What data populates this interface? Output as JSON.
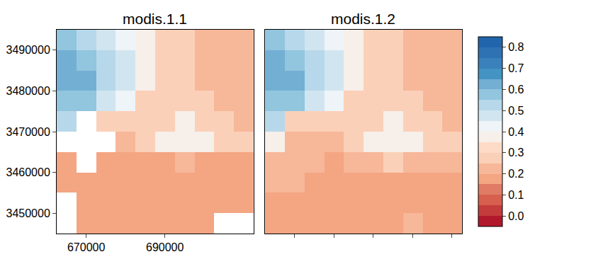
{
  "chart_data": [
    {
      "type": "heatmap",
      "title": "modis.1.1",
      "x": [
        665000,
        670000,
        675000,
        680000,
        685000,
        690000,
        695000,
        700000,
        705000,
        710000
      ],
      "y": [
        3492500,
        3487500,
        3482500,
        3477500,
        3472500,
        3467500,
        3462500,
        3457500,
        3452500,
        3447500
      ],
      "z": [
        [
          0.55,
          0.5,
          0.45,
          0.42,
          0.35,
          0.3,
          0.25,
          0.22,
          0.2,
          0.2
        ],
        [
          0.6,
          0.55,
          0.5,
          0.45,
          0.35,
          0.28,
          0.25,
          0.22,
          0.2,
          0.2
        ],
        [
          0.6,
          0.6,
          0.5,
          0.45,
          0.35,
          0.28,
          0.25,
          0.22,
          0.2,
          0.2
        ],
        [
          0.55,
          0.55,
          0.45,
          0.4,
          0.3,
          0.25,
          0.25,
          0.25,
          0.22,
          0.2
        ],
        [
          0.5,
          null,
          0.25,
          0.25,
          0.25,
          0.3,
          0.35,
          0.3,
          0.25,
          0.22
        ],
        [
          null,
          null,
          null,
          0.2,
          0.25,
          0.35,
          0.38,
          0.35,
          0.3,
          0.25
        ],
        [
          0.15,
          null,
          0.15,
          0.15,
          0.15,
          0.15,
          0.2,
          0.15,
          0.15,
          0.15
        ],
        [
          0.15,
          0.15,
          0.15,
          0.15,
          0.15,
          0.15,
          0.15,
          0.15,
          0.15,
          0.15
        ],
        [
          null,
          0.15,
          0.15,
          0.15,
          0.15,
          0.15,
          0.15,
          0.15,
          0.15,
          0.15
        ],
        [
          null,
          0.15,
          0.15,
          0.15,
          0.15,
          0.15,
          0.15,
          0.15,
          null,
          null
        ]
      ],
      "xlim": [
        662500,
        712500
      ],
      "ylim": [
        3445000,
        3495000
      ],
      "xticks": [
        670000,
        690000
      ],
      "yticks": [
        3450000,
        3460000,
        3470000,
        3480000,
        3490000
      ],
      "color_range": [
        -0.05,
        0.85
      ],
      "color_ticks": [
        {
          "value": 0,
          "label": "0.0"
        },
        0.1,
        0.2,
        0.3,
        0.4,
        0.5,
        0.6,
        0.7,
        0.8
      ]
    },
    {
      "type": "heatmap",
      "title": "modis.1.2",
      "x": [
        665000,
        670000,
        675000,
        680000,
        685000,
        690000,
        695000,
        700000,
        705000,
        710000
      ],
      "y": [
        3492500,
        3487500,
        3482500,
        3477500,
        3472500,
        3467500,
        3462500,
        3457500,
        3452500,
        3447500
      ],
      "z": [
        [
          0.55,
          0.5,
          0.45,
          0.42,
          0.35,
          0.3,
          0.25,
          0.22,
          0.2,
          0.2
        ],
        [
          0.6,
          0.55,
          0.5,
          0.45,
          0.35,
          0.28,
          0.25,
          0.22,
          0.2,
          0.2
        ],
        [
          0.6,
          0.6,
          0.5,
          0.45,
          0.35,
          0.28,
          0.25,
          0.22,
          0.2,
          0.2
        ],
        [
          0.55,
          0.55,
          0.45,
          0.4,
          0.3,
          0.25,
          0.25,
          0.25,
          0.22,
          0.2
        ],
        [
          0.5,
          0.3,
          0.25,
          0.25,
          0.25,
          0.3,
          0.35,
          0.3,
          0.25,
          0.22
        ],
        [
          0.35,
          0.2,
          0.2,
          0.2,
          0.25,
          0.35,
          0.38,
          0.35,
          0.3,
          0.25
        ],
        [
          0.2,
          0.2,
          0.2,
          0.18,
          0.2,
          0.2,
          0.25,
          0.2,
          0.2,
          0.2
        ],
        [
          0.2,
          0.2,
          0.18,
          0.15,
          0.15,
          0.15,
          0.15,
          0.15,
          0.15,
          0.15
        ],
        [
          0.18,
          0.18,
          0.15,
          0.15,
          0.15,
          0.15,
          0.15,
          0.15,
          0.15,
          0.15
        ],
        [
          0.15,
          0.18,
          0.15,
          0.15,
          0.15,
          0.15,
          0.15,
          0.2,
          0.15,
          0.15
        ]
      ],
      "xlim": [
        662500,
        712500
      ],
      "ylim": [
        3445000,
        3495000
      ],
      "xticks": [
        670000,
        680000,
        690000,
        700000,
        710000
      ],
      "tick_labels": false,
      "color_range": [
        -0.05,
        0.85
      ],
      "color_ticks": [
        {
          "value": 0,
          "label": "0.0"
        },
        0.1,
        0.2,
        0.3,
        0.4,
        0.5,
        0.6,
        0.7,
        0.8
      ]
    }
  ]
}
